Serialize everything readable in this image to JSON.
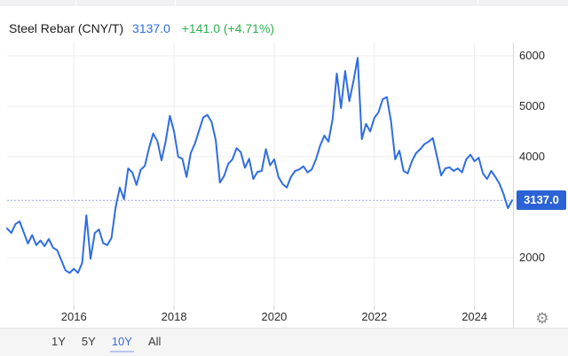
{
  "header": {
    "title": "Steel Rebar (CNY/T)",
    "price": "3137.0",
    "change": "+141.0 (+4.71%)"
  },
  "colors": {
    "line": "#2f6de3",
    "price_text": "#2f6de3",
    "change_green": "#2bb14c",
    "badge_bg": "#2b63d6",
    "grid": "#ececec",
    "axis_line": "#d8d8d8",
    "tick": "#cfcfcf",
    "dotted_line": "#90a8e8"
  },
  "axis": {
    "y_labels": [
      "6000",
      "5000",
      "4000",
      "2000"
    ],
    "x_labels": [
      "2016",
      "2018",
      "2020",
      "2022",
      "2024"
    ],
    "current_badge": "3137.0"
  },
  "icons": {
    "gear": "⚙︎"
  },
  "toolbar": {
    "ranges": [
      {
        "label": "1Y",
        "active": false
      },
      {
        "label": "5Y",
        "active": false
      },
      {
        "label": "10Y",
        "active": true
      },
      {
        "label": "All",
        "active": false
      }
    ]
  },
  "chart_data": {
    "type": "line",
    "title": "Steel Rebar (CNY/T)",
    "frequency": "monthly",
    "start": "2014-09",
    "end": "2024-10",
    "current": 3137.0,
    "ylim": [
      1500,
      6300
    ],
    "y_gridlines": [
      6000,
      5000,
      4000,
      3000,
      2000
    ],
    "x_gridline_years": [
      2016,
      2018,
      2020,
      2022,
      2024
    ],
    "legend_position": "none",
    "grid": true,
    "values": [
      2580,
      2490,
      2665,
      2720,
      2500,
      2280,
      2450,
      2250,
      2340,
      2230,
      2370,
      2200,
      2150,
      1950,
      1750,
      1700,
      1780,
      1700,
      1900,
      2840,
      1980,
      2490,
      2560,
      2290,
      2250,
      2390,
      3000,
      3390,
      3160,
      3770,
      3690,
      3440,
      3740,
      3820,
      4170,
      4460,
      4310,
      3930,
      4310,
      4810,
      4500,
      4000,
      3960,
      3600,
      4070,
      4260,
      4520,
      4780,
      4830,
      4690,
      4330,
      3490,
      3620,
      3860,
      3950,
      4170,
      4090,
      3780,
      3960,
      3560,
      3700,
      3720,
      4150,
      3830,
      3950,
      3600,
      3460,
      3390,
      3600,
      3720,
      3750,
      3810,
      3690,
      3750,
      3950,
      4220,
      4420,
      4300,
      4750,
      5650,
      4965,
      5700,
      5100,
      5500,
      5960,
      4350,
      4650,
      4500,
      4770,
      4880,
      5140,
      5180,
      4700,
      3950,
      4120,
      3720,
      3670,
      3910,
      4070,
      4150,
      4250,
      4300,
      4370,
      4000,
      3630,
      3770,
      3790,
      3720,
      3770,
      3690,
      3950,
      4040,
      3910,
      3980,
      3670,
      3560,
      3720,
      3600,
      3460,
      3250,
      2980,
      3137
    ]
  }
}
